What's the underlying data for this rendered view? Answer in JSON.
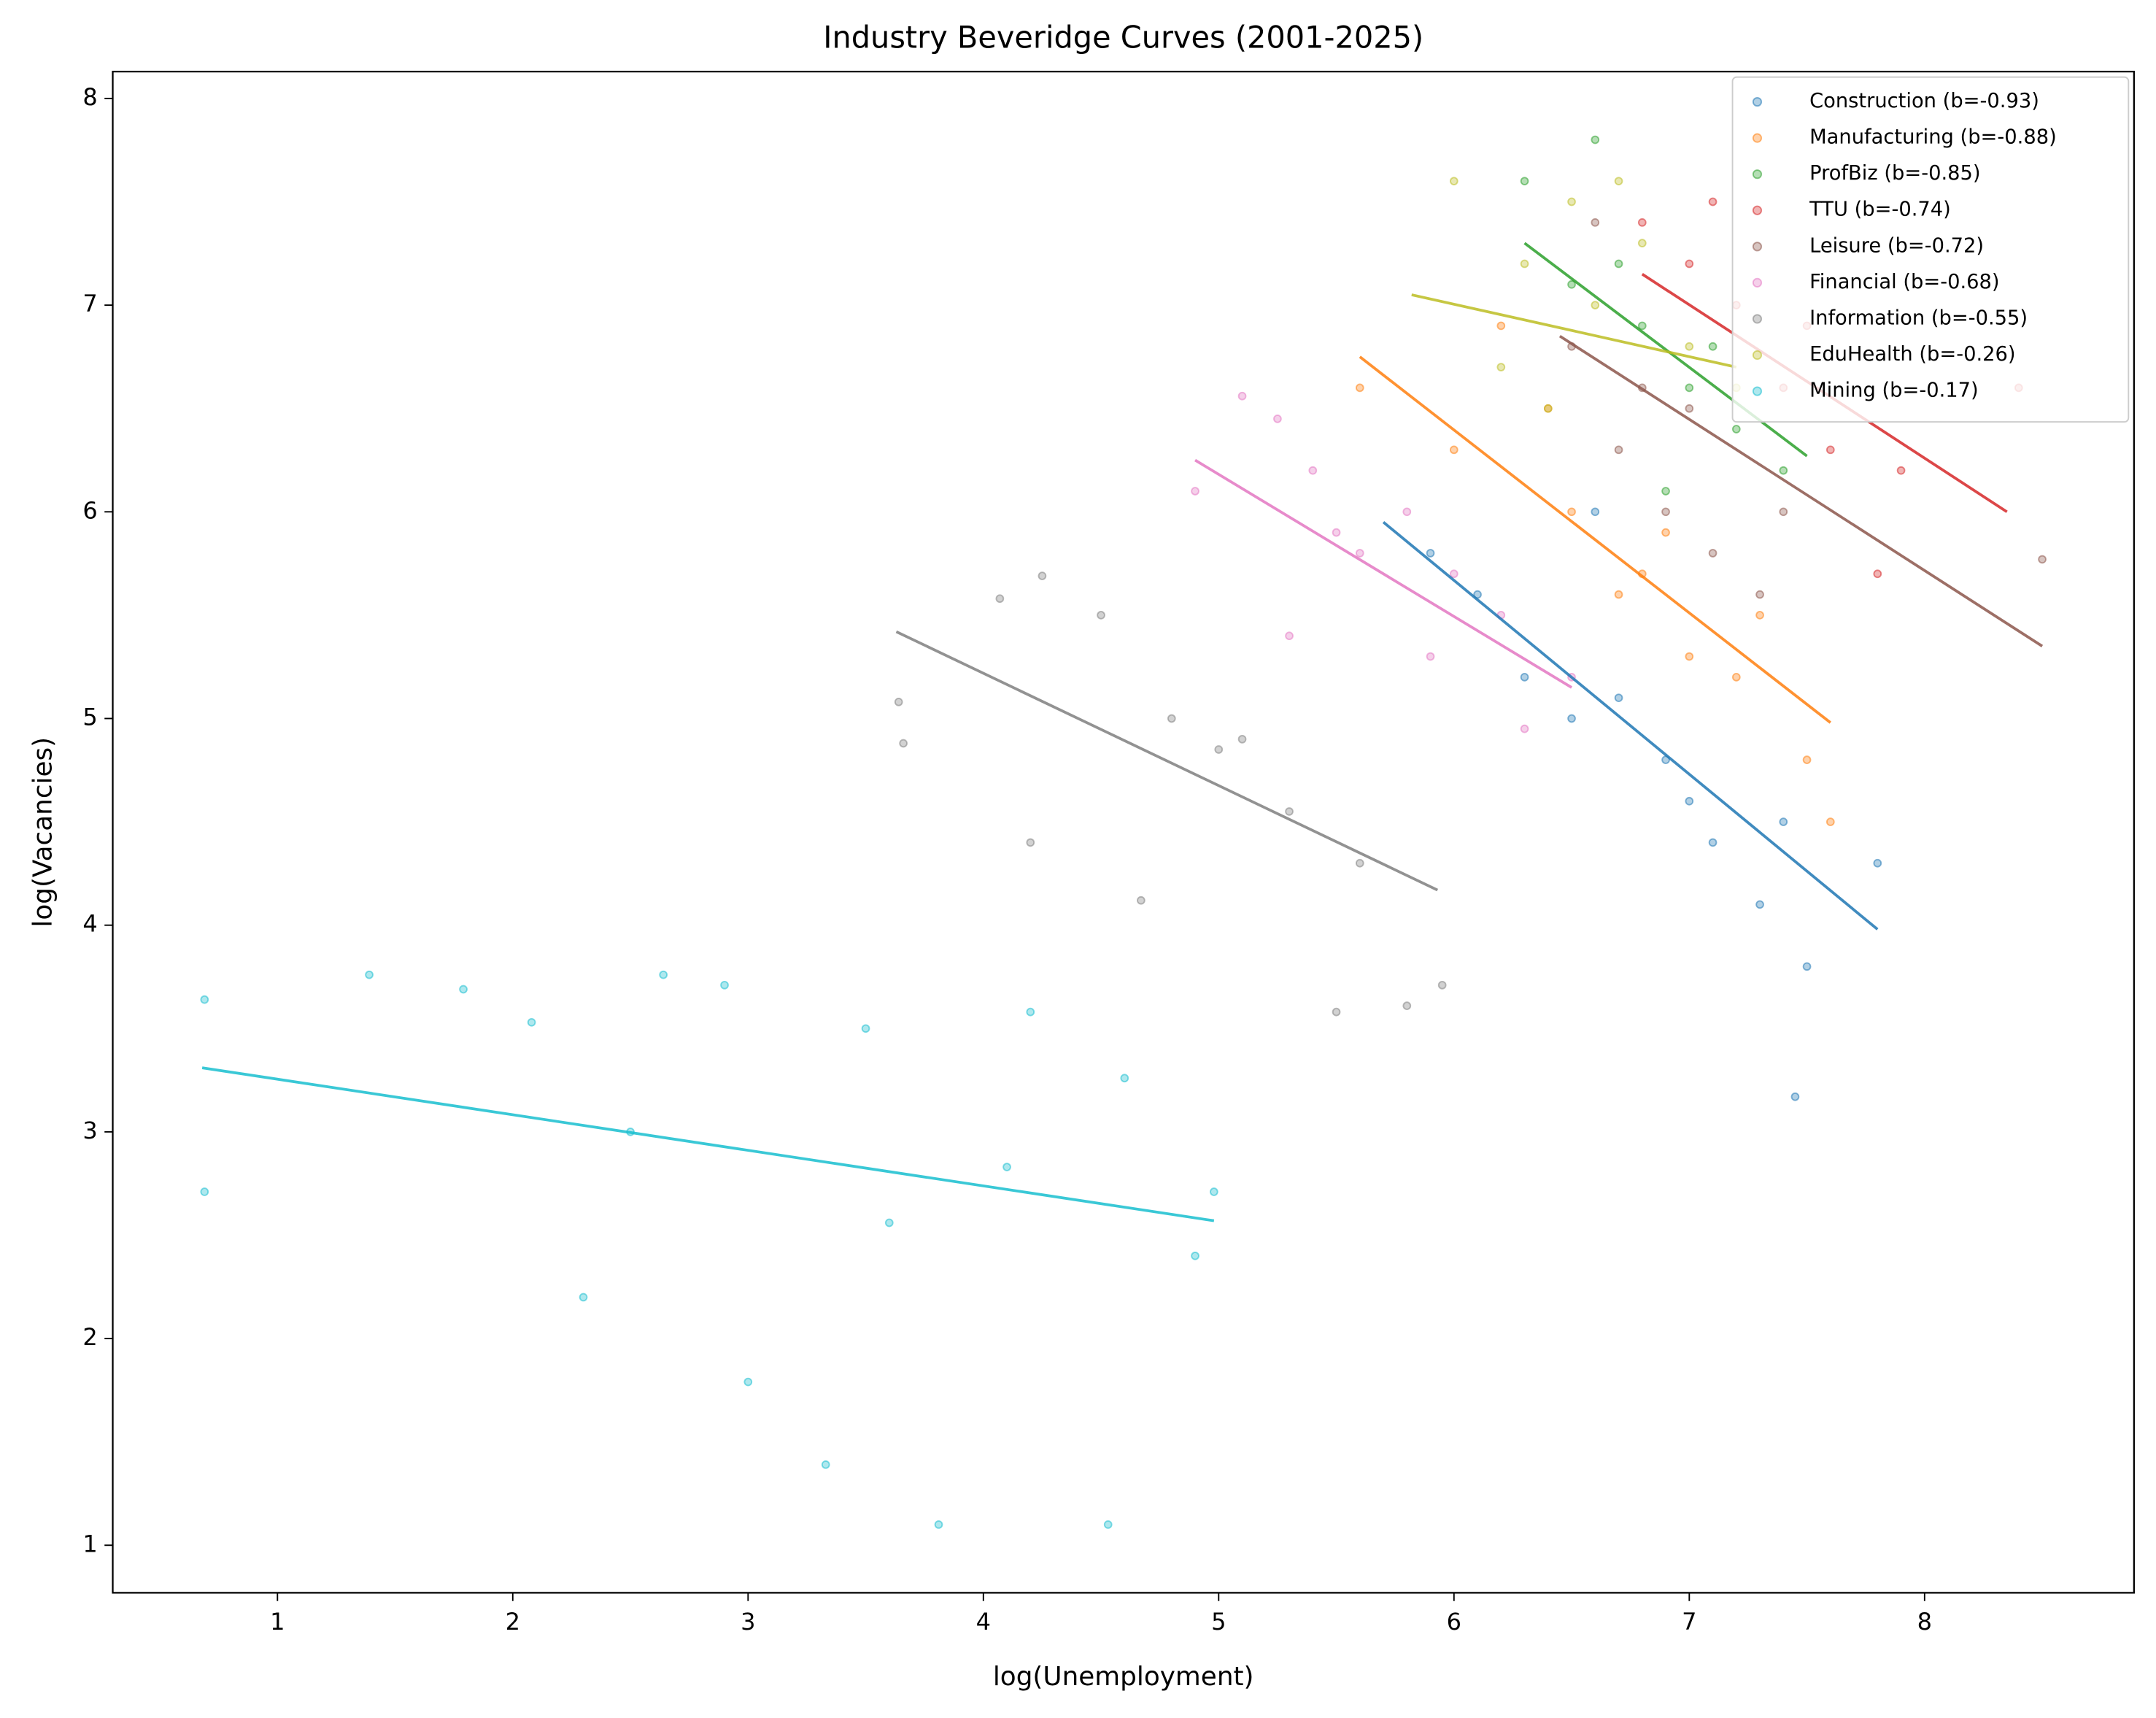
{
  "chart_data": {
    "type": "scatter",
    "title": "Industry Beveridge Curves (2001-2025)",
    "x_label": "log(Unemployment)",
    "y_label": "log(Vacancies)",
    "xlim": [
      0.3,
      8.89
    ],
    "ylim": [
      0.77,
      8.13
    ],
    "xticks": [
      1,
      2,
      3,
      4,
      5,
      6,
      7,
      8
    ],
    "yticks": [
      1,
      2,
      3,
      4,
      5,
      6,
      7,
      8
    ],
    "legend": "upper right",
    "series": [
      {
        "name": "Construction (b=-0.93)",
        "color": "#1f77b4",
        "x": [
          5.9,
          6.1,
          6.5,
          6.9,
          7.1,
          7.3,
          7.45,
          7.5,
          7.8,
          6.6,
          6.3,
          7.0,
          7.4,
          6.7
        ],
        "y": [
          5.8,
          5.6,
          5.0,
          4.8,
          4.4,
          4.1,
          3.17,
          3.8,
          4.3,
          6.0,
          5.2,
          4.6,
          4.5,
          5.1
        ],
        "fit_x": [
          5.7,
          7.8
        ],
        "fit_y": [
          5.95,
          3.98
        ]
      },
      {
        "name": "Manufacturing (b=-0.88)",
        "color": "#ff7f0e",
        "x": [
          5.6,
          6.0,
          6.2,
          6.5,
          6.8,
          7.0,
          7.3,
          7.5,
          7.6,
          6.4,
          6.9,
          7.2,
          6.7
        ],
        "y": [
          6.6,
          6.3,
          6.9,
          6.0,
          5.7,
          5.3,
          5.5,
          4.8,
          4.5,
          6.5,
          5.9,
          5.2,
          5.6
        ],
        "fit_x": [
          5.6,
          7.6
        ],
        "fit_y": [
          6.75,
          4.98
        ]
      },
      {
        "name": "ProfBiz (b=-0.85)",
        "color": "#2ca02c",
        "x": [
          6.3,
          6.5,
          6.6,
          6.8,
          7.0,
          7.2,
          7.4,
          6.9,
          6.7,
          7.1
        ],
        "y": [
          7.6,
          7.1,
          7.8,
          6.9,
          6.6,
          6.4,
          6.2,
          6.1,
          7.2,
          6.8
        ],
        "fit_x": [
          6.3,
          7.5
        ],
        "fit_y": [
          7.3,
          6.27
        ]
      },
      {
        "name": "TTU (b=-0.74)",
        "color": "#d62728",
        "x": [
          6.8,
          7.0,
          7.2,
          7.4,
          7.6,
          7.8,
          7.9,
          7.1,
          8.4,
          7.5
        ],
        "y": [
          7.4,
          7.2,
          7.0,
          6.6,
          6.3,
          5.7,
          6.2,
          7.5,
          6.6,
          6.9
        ],
        "fit_x": [
          6.8,
          8.35
        ],
        "fit_y": [
          7.15,
          6.0
        ]
      },
      {
        "name": "Leisure (b=-0.72)",
        "color": "#8c564b",
        "x": [
          6.5,
          6.7,
          6.9,
          7.1,
          7.3,
          6.6,
          7.0,
          8.5,
          7.4,
          6.8
        ],
        "y": [
          6.8,
          6.3,
          6.0,
          5.8,
          5.6,
          7.4,
          6.5,
          5.77,
          6.0,
          6.6
        ],
        "fit_x": [
          6.45,
          8.5
        ],
        "fit_y": [
          6.85,
          5.35
        ]
      },
      {
        "name": "Financial (b=-0.68)",
        "color": "#e377c2",
        "x": [
          4.9,
          5.1,
          5.4,
          5.6,
          5.8,
          6.0,
          5.3,
          6.2,
          6.5,
          5.5,
          5.9,
          6.3,
          5.25
        ],
        "y": [
          6.1,
          6.56,
          6.2,
          5.8,
          6.0,
          5.7,
          5.4,
          5.5,
          5.2,
          5.9,
          5.3,
          4.95,
          6.45
        ],
        "fit_x": [
          4.9,
          6.5
        ],
        "fit_y": [
          6.25,
          5.15
        ]
      },
      {
        "name": "Information (b=-0.55)",
        "color": "#7f7f7f",
        "x": [
          3.64,
          3.66,
          4.07,
          4.25,
          4.67,
          5.0,
          5.3,
          5.5,
          5.8,
          5.95,
          4.5,
          5.1,
          4.8,
          5.6,
          4.2
        ],
        "y": [
          5.08,
          4.88,
          5.58,
          5.69,
          4.12,
          4.85,
          4.55,
          3.58,
          3.61,
          3.71,
          5.5,
          4.9,
          5.0,
          4.3,
          4.4
        ],
        "fit_x": [
          3.63,
          5.93
        ],
        "fit_y": [
          5.42,
          4.17
        ]
      },
      {
        "name": "EduHealth (b=-0.26)",
        "color": "#bcbd22",
        "x": [
          6.0,
          6.2,
          6.4,
          6.5,
          6.6,
          6.8,
          7.0,
          6.3,
          7.2,
          6.7
        ],
        "y": [
          7.6,
          6.7,
          6.5,
          7.5,
          7.0,
          7.3,
          6.8,
          7.2,
          6.6,
          7.6
        ],
        "fit_x": [
          5.82,
          7.2
        ],
        "fit_y": [
          7.05,
          6.7
        ]
      },
      {
        "name": "Mining (b=-0.17)",
        "color": "#17becf",
        "x": [
          0.69,
          0.69,
          1.39,
          1.79,
          2.08,
          2.3,
          2.64,
          3.0,
          3.33,
          3.81,
          4.53,
          4.98,
          3.5,
          4.2,
          2.9,
          3.6,
          4.1,
          2.5,
          4.6,
          4.9
        ],
        "y": [
          3.64,
          2.71,
          3.76,
          3.69,
          3.53,
          2.2,
          3.76,
          1.79,
          1.39,
          1.1,
          1.1,
          2.71,
          3.5,
          3.58,
          3.71,
          2.56,
          2.83,
          3.0,
          3.26,
          2.4
        ],
        "fit_x": [
          0.68,
          4.98
        ],
        "fit_y": [
          3.31,
          2.57
        ]
      }
    ]
  }
}
